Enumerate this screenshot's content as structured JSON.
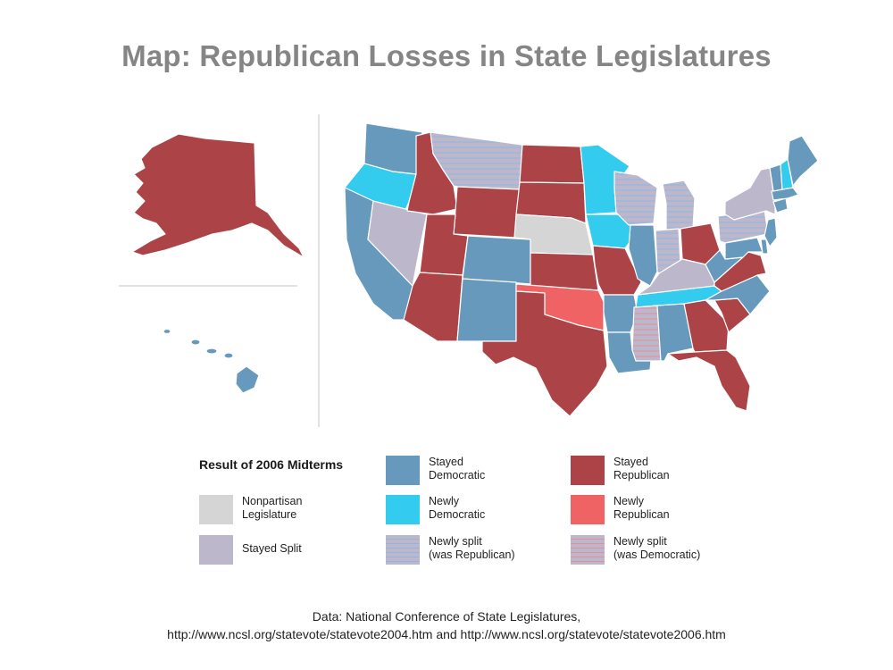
{
  "title": "Map: Republican Losses in State Legislatures",
  "colors": {
    "stayed_democratic": "#6699bb",
    "newly_democratic": "#33ccee",
    "stayed_republican": "#ac4447",
    "newly_republican": "#f06365",
    "nonpartisan": "#d5d5d5",
    "stayed_split": "#bdb7cb",
    "split_base": "#bdb7cb",
    "stripe_blue": "#8fb6e0",
    "stripe_red": "#e48f98",
    "border": "#ffffff",
    "divider": "#d8d8d8"
  },
  "legend": {
    "title": "Result of 2006 Midterms",
    "items": [
      {
        "key": "nonpartisan",
        "lines": [
          "Nonpartisan",
          "Legislature"
        ]
      },
      {
        "key": "stayed_split",
        "lines": [
          "Stayed Split"
        ]
      },
      {
        "key": "stayed_democratic",
        "lines": [
          "Stayed",
          "Democratic"
        ]
      },
      {
        "key": "newly_democratic",
        "lines": [
          "Newly",
          "Democratic"
        ]
      },
      {
        "key": "newly_split_rep",
        "lines": [
          "Newly split",
          "(was Republican)"
        ]
      },
      {
        "key": "stayed_republican",
        "lines": [
          "Stayed",
          "Republican"
        ]
      },
      {
        "key": "newly_republican",
        "lines": [
          "Newly",
          "Republican"
        ]
      },
      {
        "key": "newly_split_dem",
        "lines": [
          "Newly split",
          "(was Democratic)"
        ]
      }
    ]
  },
  "source": {
    "line1": "Data: National Conference of State Legislatures,",
    "line2": "http://www.ncsl.org/statevote/statevote2004.htm and http://www.ncsl.org/statevote/statevote2006.htm"
  }
}
